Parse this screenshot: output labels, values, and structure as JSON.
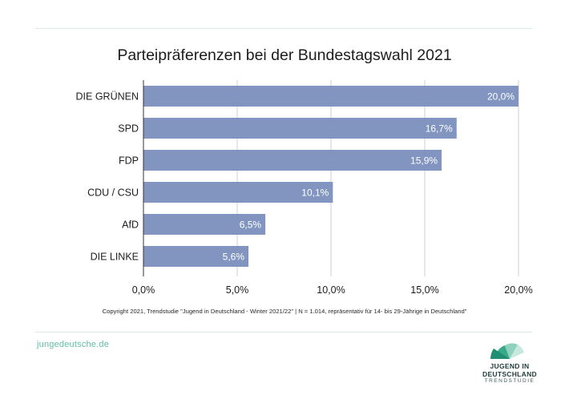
{
  "chart_data": {
    "type": "bar",
    "orientation": "horizontal",
    "title": "Parteipräferenzen bei der Bundestagswahl 2021",
    "categories": [
      "DIE GRÜNEN",
      "SPD",
      "FDP",
      "CDU / CSU",
      "AfD",
      "DIE LINKE"
    ],
    "values": [
      20.0,
      16.7,
      15.9,
      10.1,
      6.5,
      5.6
    ],
    "value_labels": [
      "20,0%",
      "16,7%",
      "15,9%",
      "10,1%",
      "6,5%",
      "5,6%"
    ],
    "xlim": [
      0,
      20
    ],
    "xticks": [
      0,
      5,
      10,
      15,
      20
    ],
    "xtick_labels": [
      "0,0%",
      "5,0%",
      "10,0%",
      "15,0%",
      "20,0%"
    ],
    "xlabel": "",
    "ylabel": "",
    "grid": "vertical",
    "bar_color": "#8195c0"
  },
  "source_note": "Copyright 2021, Trendstudie \"Jugend in Deutschland - Winter 2021/22\" | N = 1.014, repräsentativ für 14- bis 29-Jährige in Deutschland\"",
  "website": "jungedeutsche.de",
  "logo": {
    "line1": "JUGEND IN",
    "line2": "DEUTSCHLAND",
    "line3": "TRENDSTUDIE",
    "color": "#5fbfa3"
  }
}
